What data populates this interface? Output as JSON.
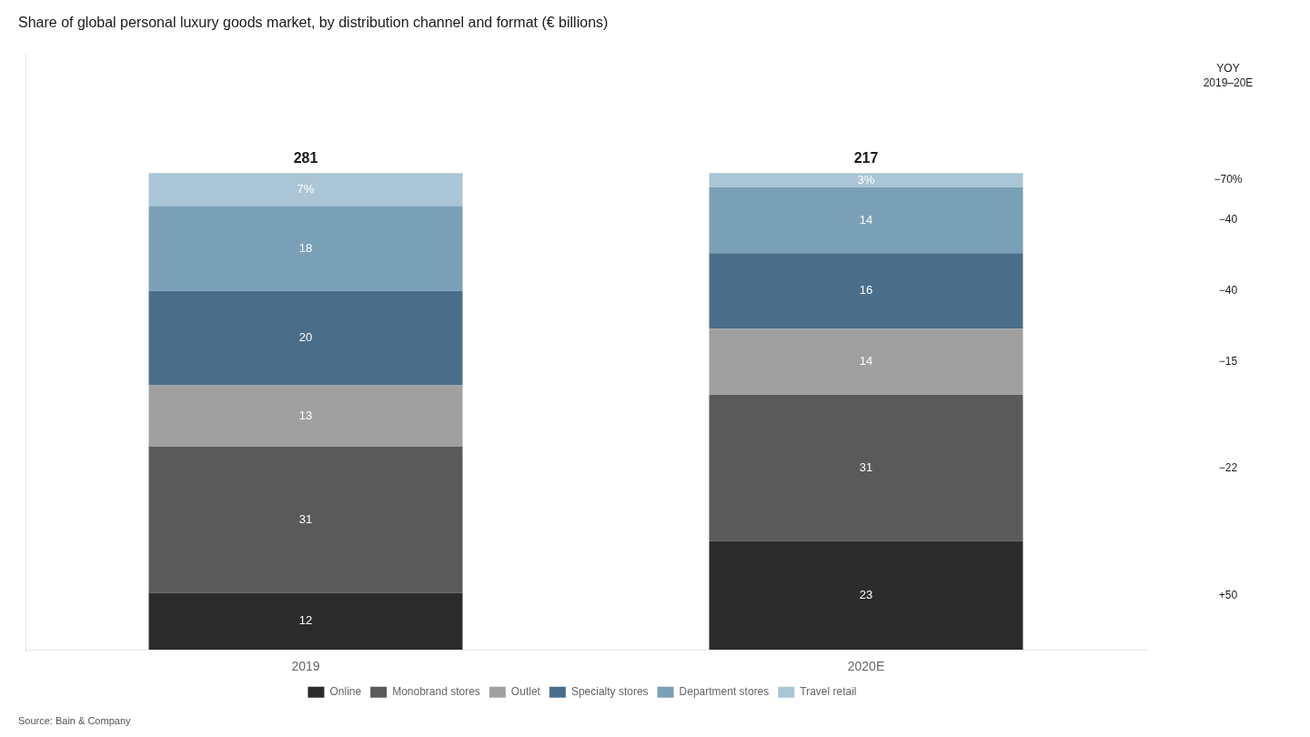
{
  "chart_data": {
    "type": "bar",
    "title": "Share of global personal luxury goods market, by distribution channel and format (€ billions)",
    "source": "Source: Bain & Company",
    "categories": [
      "2019",
      "2020E"
    ],
    "series": [
      {
        "name": "Online",
        "color": "#2b2b2b",
        "values": [
          12,
          23
        ],
        "yoy": {
          "value": 50,
          "label": "+50"
        }
      },
      {
        "name": "Monobrand stores",
        "color": "#5a5a5a",
        "values": [
          31,
          31
        ],
        "yoy": {
          "value": -22,
          "label": "−22"
        }
      },
      {
        "name": "Outlet",
        "color": "#a0a0a0",
        "values": [
          13,
          14
        ],
        "yoy": {
          "value": -15,
          "label": "−15"
        }
      },
      {
        "name": "Specialty stores",
        "color": "#4a6e8a",
        "values": [
          20,
          16
        ],
        "yoy": {
          "value": -40,
          "label": "−40"
        }
      },
      {
        "name": "Department stores",
        "color": "#7aa0b8",
        "values": [
          18,
          14
        ],
        "yoy": {
          "value": -40,
          "label": "−40"
        }
      },
      {
        "name": "Travel retail",
        "color": "#aac5d5",
        "values": [
          7,
          3
        ],
        "value_labels": [
          "7%",
          "3%"
        ],
        "yoy": {
          "value": -70,
          "label": "−70%"
        }
      }
    ],
    "totals": [
      281,
      217
    ],
    "yoy_title": "YOY\n2019–20E",
    "ylim": [
      0,
      126.25
    ],
    "stacked": true,
    "data_labels": true,
    "legend": "bottom",
    "grid": false,
    "tick_labels": "x"
  }
}
